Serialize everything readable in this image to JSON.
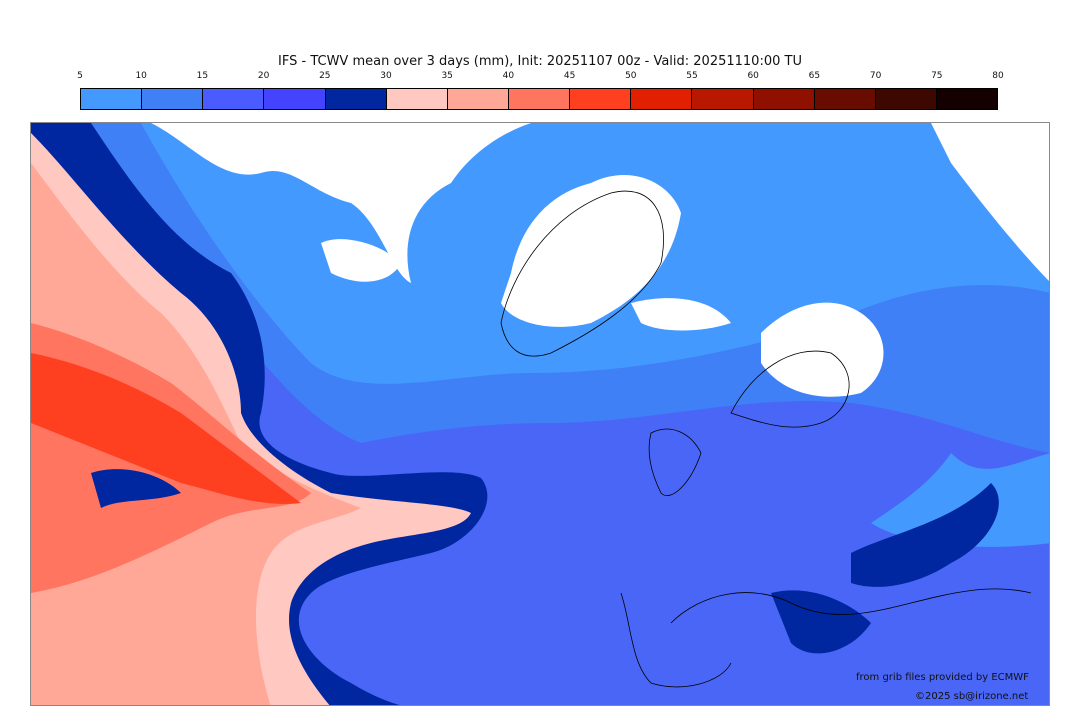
{
  "title": "IFS - TCWV mean over 3 days (mm), Init: 20251107 00z - Valid: 20251110:00 TU",
  "colorbar": {
    "ticks": [
      "5",
      "10",
      "15",
      "20",
      "25",
      "30",
      "35",
      "40",
      "45",
      "50",
      "55",
      "60",
      "65",
      "70",
      "75",
      "80"
    ],
    "colors": [
      "#4499ff",
      "#3f80f6",
      "#4a5cff",
      "#4444ff",
      "#0026a0",
      "#ffc8c0",
      "#ffa898",
      "#ff7560",
      "#ff4020",
      "#e02000",
      "#b81800",
      "#901000",
      "#680c00",
      "#3c0800",
      "#140000"
    ]
  },
  "credits": {
    "source": "from grib files provided by ECMWF",
    "copyright": "©2025 sb@irizone.net"
  }
}
